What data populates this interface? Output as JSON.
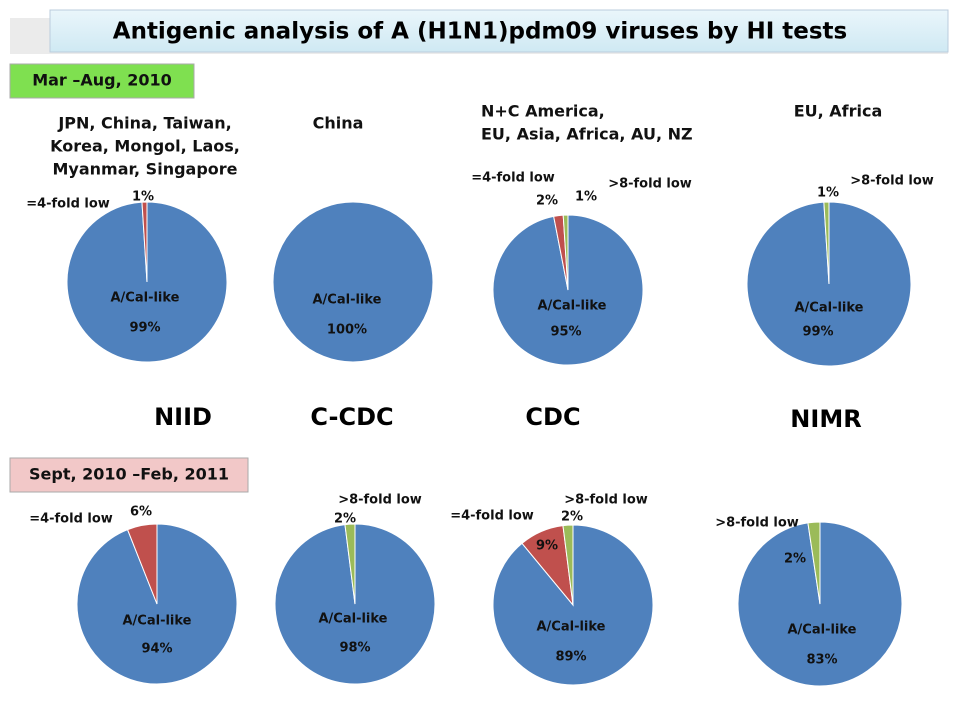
{
  "title": "Antigenic analysis of A (H1N1)pdm09 viruses by HI tests",
  "periods": [
    "Mar –Aug, 2010",
    "Sept, 2010 –Feb, 2011"
  ],
  "labs": [
    "NIID",
    "C-CDC",
    "CDC",
    "NIMR"
  ],
  "chart_data": [
    {
      "type": "pie",
      "title": [
        "JPN, China, Taiwan,",
        "Korea, Mongol, Laos,",
        "Myanmar, Singapore"
      ],
      "categories": [
        "A/Cal-like",
        "=4-fold low"
      ],
      "values": [
        99,
        1
      ],
      "value_labels": [
        "99%",
        "1%"
      ],
      "colors": [
        "#4f81bd",
        "#c0504d"
      ]
    },
    {
      "type": "pie",
      "title": [
        "China"
      ],
      "categories": [
        "A/Cal-like"
      ],
      "values": [
        100
      ],
      "value_labels": [
        "100%"
      ],
      "colors": [
        "#4f81bd"
      ]
    },
    {
      "type": "pie",
      "title": [
        "N+C America,",
        "EU, Asia, Africa, AU, NZ"
      ],
      "categories": [
        "A/Cal-like",
        "=4-fold low",
        ">8-fold low"
      ],
      "values": [
        95,
        2,
        1
      ],
      "value_labels": [
        "95%",
        "2%",
        "1%"
      ],
      "colors": [
        "#4f81bd",
        "#c0504d",
        "#9bbb59"
      ]
    },
    {
      "type": "pie",
      "title": [
        "EU, Africa"
      ],
      "categories": [
        "A/Cal-like",
        ">8-fold low"
      ],
      "values": [
        99,
        1
      ],
      "value_labels": [
        "99%",
        "1%"
      ],
      "colors": [
        "#4f81bd",
        "#9bbb59"
      ]
    },
    {
      "type": "pie",
      "categories": [
        "A/Cal-like",
        "=4-fold low"
      ],
      "values": [
        94,
        6
      ],
      "value_labels": [
        "94%",
        "6%"
      ],
      "colors": [
        "#4f81bd",
        "#c0504d"
      ]
    },
    {
      "type": "pie",
      "categories": [
        "A/Cal-like",
        ">8-fold low"
      ],
      "values": [
        98,
        2
      ],
      "value_labels": [
        "98%",
        "2%"
      ],
      "colors": [
        "#4f81bd",
        "#9bbb59"
      ]
    },
    {
      "type": "pie",
      "categories": [
        "A/Cal-like",
        "=4-fold low",
        ">8-fold low"
      ],
      "values": [
        89,
        9,
        2
      ],
      "value_labels": [
        "89%",
        "9%",
        "2%"
      ],
      "colors": [
        "#4f81bd",
        "#c0504d",
        "#9bbb59"
      ]
    },
    {
      "type": "pie",
      "categories": [
        "A/Cal-like",
        ">8-fold low"
      ],
      "values": [
        83,
        2
      ],
      "value_labels": [
        "83%",
        "2%"
      ],
      "colors": [
        "#4f81bd",
        "#9bbb59"
      ]
    }
  ]
}
